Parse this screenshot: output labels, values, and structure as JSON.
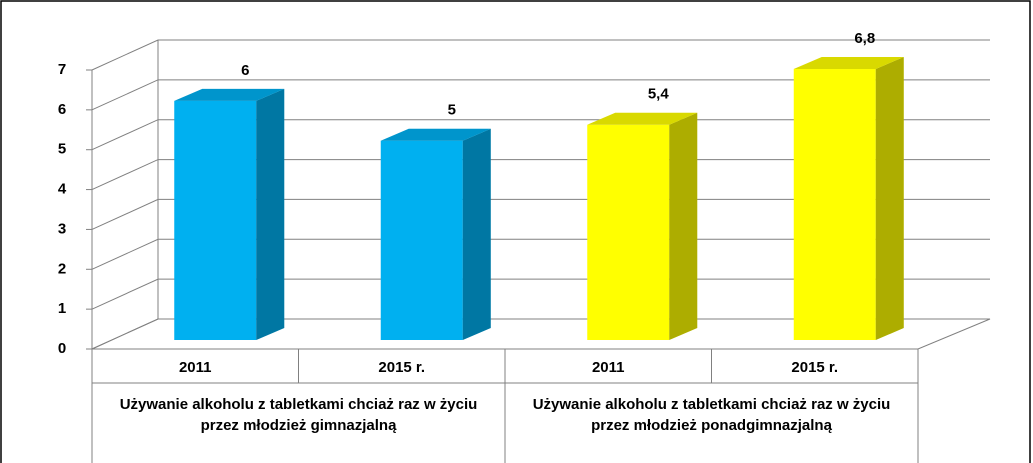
{
  "chart_data": {
    "type": "bar3d",
    "groups": [
      {
        "label": "Używanie alkoholu z tabletkami chciaż raz w życiu przez młodzież gimnazjalną",
        "categories": [
          "2011",
          "2015 r."
        ],
        "values": [
          6,
          5
        ],
        "value_labels": [
          "6",
          "5"
        ],
        "color": "#00b0f0"
      },
      {
        "label": "Używanie alkoholu z tabletkami chciaż raz w życiu przez młodzież ponadgimnazjalną",
        "categories": [
          "2011",
          "2015 r."
        ],
        "values": [
          5.4,
          6.8
        ],
        "value_labels": [
          "5,4",
          "6,8"
        ],
        "color": "#ffff00"
      }
    ],
    "ylim": [
      0,
      7
    ],
    "yticks": [
      0,
      1,
      2,
      3,
      4,
      5,
      6,
      7
    ],
    "grid": true
  }
}
